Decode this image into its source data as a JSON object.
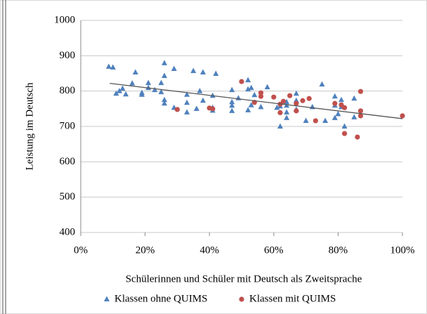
{
  "chart_data": {
    "type": "scatter",
    "x_label": "Schülerinnen und Schüler mit Deutsch als Zweitsprache",
    "y_label": "Leistung im Deutsch",
    "xlim": [
      0,
      100
    ],
    "xticks": [
      {
        "value": 0,
        "label": "0%"
      },
      {
        "value": 20,
        "label": "20%"
      },
      {
        "value": 40,
        "label": "40%"
      },
      {
        "value": 60,
        "label": "60%"
      },
      {
        "value": 80,
        "label": "80%"
      },
      {
        "value": 100,
        "label": "100%"
      }
    ],
    "ylim": [
      400,
      1000
    ],
    "yticks": [
      400,
      500,
      600,
      700,
      800,
      900,
      1000
    ],
    "grid": true,
    "legend": "bottom",
    "series": [
      {
        "name": "Klassen ohne QUIMS",
        "color": "#4f81bd",
        "marker": "triangle",
        "x": [
          8.7,
          10,
          11,
          12,
          13,
          14,
          16,
          17,
          19,
          19,
          21,
          21,
          23,
          25,
          25,
          26,
          26,
          26,
          26,
          29,
          29,
          33,
          33,
          33,
          35,
          36,
          37,
          38,
          38,
          41,
          41,
          41,
          42,
          47,
          47,
          47,
          47,
          49,
          52,
          52,
          52,
          53,
          53,
          54,
          56,
          58,
          61,
          62,
          62,
          64,
          64,
          64,
          64,
          67,
          67,
          67,
          70,
          72,
          75,
          76,
          79,
          79,
          79,
          80,
          81,
          81,
          82,
          85,
          85
        ],
        "values": [
          869,
          867,
          793,
          800,
          807,
          791,
          822,
          853,
          795,
          790,
          809,
          823,
          803,
          823,
          797,
          843,
          879,
          775,
          765,
          863,
          753,
          767,
          740,
          790,
          857,
          750,
          800,
          853,
          773,
          787,
          753,
          745,
          849,
          769,
          803,
          759,
          744,
          780,
          805,
          831,
          746,
          760,
          809,
          789,
          755,
          811,
          753,
          700,
          757,
          759,
          769,
          740,
          724,
          748,
          793,
          773,
          716,
          755,
          819,
          716,
          785,
          759,
          724,
          735,
          775,
          755,
          700,
          726,
          779
        ]
      },
      {
        "name": "Klassen mit QUIMS",
        "color": "#c0504d",
        "marker": "circle",
        "x": [
          30,
          40,
          41,
          50,
          54,
          56,
          56,
          60,
          62,
          62,
          63,
          65,
          67,
          67,
          69,
          71,
          73,
          79,
          81,
          82,
          82,
          86,
          87,
          87,
          87,
          100
        ],
        "values": [
          748,
          752,
          750,
          827,
          768,
          785,
          795,
          783,
          763,
          739,
          771,
          787,
          765,
          744,
          773,
          779,
          716,
          765,
          761,
          680,
          753,
          670,
          799,
          744,
          730,
          730
        ]
      }
    ],
    "trendline": {
      "color": "#555555",
      "x": [
        9,
        100
      ],
      "values": [
        822,
        722
      ]
    }
  }
}
